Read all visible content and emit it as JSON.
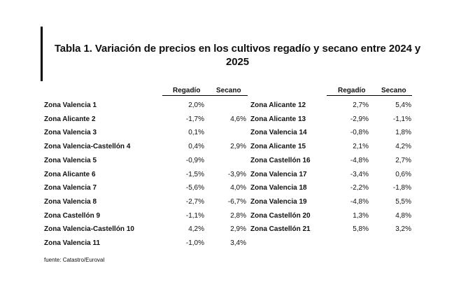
{
  "title_line1": "Tabla 1. Variación de precios en los cultivos regadío y secano entre 2024 y",
  "title_line2": "2025",
  "headers": {
    "regadio": "Regadío",
    "secano": "Secano"
  },
  "left_rows": [
    {
      "zone": "Zona Valencia 1",
      "regadio": "2,0%",
      "secano": ""
    },
    {
      "zone": "Zona Alicante 2",
      "regadio": "-1,7%",
      "secano": "4,6%"
    },
    {
      "zone": "Zona Valencia 3",
      "regadio": "0,1%",
      "secano": ""
    },
    {
      "zone": "Zona Valencia-Castellón 4",
      "regadio": "0,4%",
      "secano": "2,9%"
    },
    {
      "zone": "Zona Valencia 5",
      "regadio": "-0,9%",
      "secano": ""
    },
    {
      "zone": "Zona Alicante 6",
      "regadio": "-1,5%",
      "secano": "-3,9%"
    },
    {
      "zone": "Zona Valencia 7",
      "regadio": "-5,6%",
      "secano": "4,0%"
    },
    {
      "zone": "Zona Valencia 8",
      "regadio": "-2,7%",
      "secano": "-6,7%"
    },
    {
      "zone": "Zona Castellón 9",
      "regadio": "-1,1%",
      "secano": "2,8%"
    },
    {
      "zone": "Zona Valencia-Castellón 10",
      "regadio": "4,2%",
      "secano": "2,9%"
    },
    {
      "zone": "Zona Valencia 11",
      "regadio": "-1,0%",
      "secano": "3,4%"
    }
  ],
  "right_rows": [
    {
      "zone": "Zona Alicante 12",
      "regadio": "2,7%",
      "secano": "5,4%"
    },
    {
      "zone": "Zona Alicante 13",
      "regadio": "-2,9%",
      "secano": "-1,1%"
    },
    {
      "zone": "Zona Valencia 14",
      "regadio": "-0,8%",
      "secano": "1,8%"
    },
    {
      "zone": "Zona Alicante 15",
      "regadio": "2,1%",
      "secano": "4,2%"
    },
    {
      "zone": "Zona Castellón 16",
      "regadio": "-4,8%",
      "secano": "2,7%"
    },
    {
      "zone": "Zona Valencia 17",
      "regadio": "-3,4%",
      "secano": "0,6%"
    },
    {
      "zone": "Zona Valencia 18",
      "regadio": "-2,2%",
      "secano": "-1,8%"
    },
    {
      "zone": "Zona Valencia 19",
      "regadio": "-4,8%",
      "secano": "5,5%"
    },
    {
      "zone": "Zona Castellón 20",
      "regadio": "1,3%",
      "secano": "4,8%"
    },
    {
      "zone": "Zona Castellón 21",
      "regadio": "5,8%",
      "secano": "3,2%"
    }
  ],
  "footnote": "fuente: Catastro/Euroval"
}
